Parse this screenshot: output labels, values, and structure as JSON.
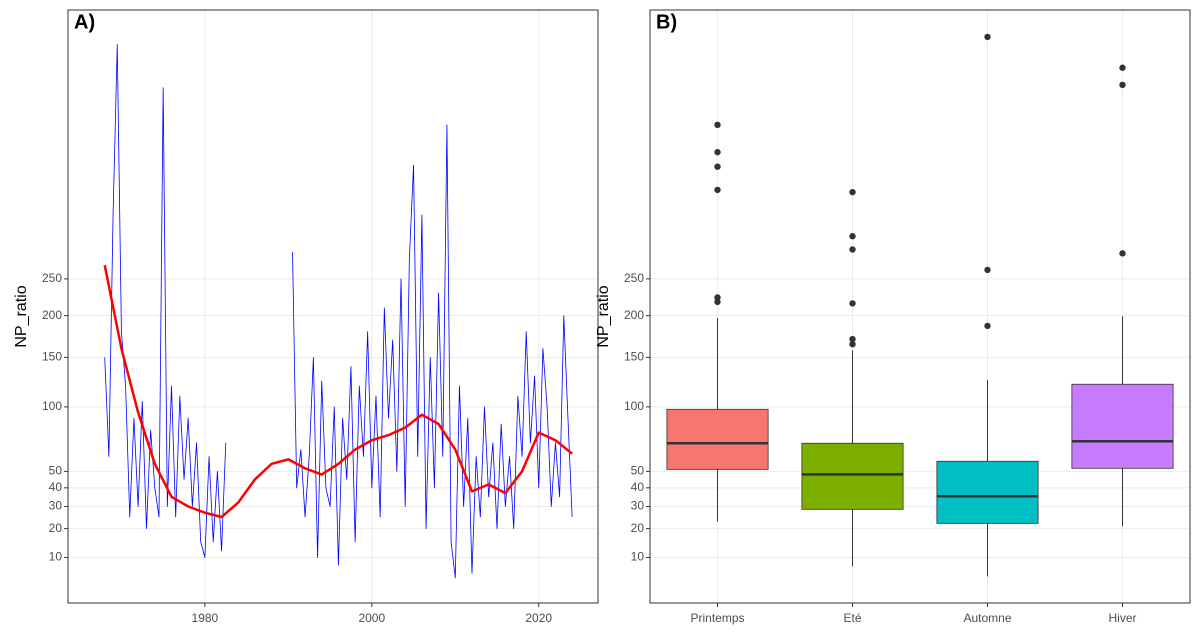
{
  "chart_data": [
    {
      "type": "line",
      "panel_label": "A)",
      "y_label": "NP_ratio",
      "yscale": "sqrt",
      "grid": true,
      "xlim": [
        1963.6,
        2027.1
      ],
      "xticks": [
        1980,
        2000,
        2020
      ],
      "ylim": [
        1.2,
        785
      ],
      "yticks": [
        10,
        20,
        30,
        40,
        50,
        100,
        150,
        200,
        250
      ],
      "series": [
        {
          "color": "#0000FF",
          "line_width": 0.8,
          "x": [
            1968.0,
            1968.5,
            1969.0,
            1969.5,
            1970.0,
            1970.5,
            1971.0,
            1971.5,
            1972.0,
            1972.5,
            1973.0,
            1973.5,
            1974.0,
            1974.5,
            1975.0,
            1975.5,
            1976.0,
            1976.5,
            1977.0,
            1977.5,
            1978.0,
            1978.5,
            1979.0,
            1979.5,
            1980.0,
            1980.5,
            1981.0,
            1981.5,
            1982.0,
            1982.5,
            1986.5,
            1990.5,
            1991.0,
            1991.5,
            1992.0,
            1992.5,
            1993.0,
            1993.5,
            1994.0,
            1994.5,
            1995.0,
            1995.5,
            1996.0,
            1996.5,
            1997.0,
            1997.5,
            1998.0,
            1998.5,
            1999.0,
            1999.5,
            2000.0,
            2000.5,
            2001.0,
            2001.5,
            2002.0,
            2002.5,
            2003.0,
            2003.5,
            2004.0,
            2004.5,
            2005.0,
            2005.5,
            2006.0,
            2006.5,
            2007.0,
            2007.5,
            2008.0,
            2008.5,
            2009.0,
            2009.5,
            2010.0,
            2010.5,
            2011.0,
            2011.5,
            2012.0,
            2012.5,
            2013.0,
            2013.5,
            2014.0,
            2014.5,
            2015.0,
            2015.5,
            2016.0,
            2016.5,
            2017.0,
            2017.5,
            2018.0,
            2018.5,
            2019.0,
            2019.5,
            2020.0,
            2020.5,
            2021.0,
            2021.5,
            2022.0,
            2022.5,
            2023.0,
            2023.5,
            2024.0
          ],
          "values": [
            150,
            60,
            350,
            700,
            180,
            120,
            25,
            90,
            30,
            105,
            20,
            80,
            40,
            25,
            600,
            30,
            120,
            25,
            110,
            45,
            90,
            30,
            70,
            15,
            10,
            60,
            15,
            50,
            12,
            70,
            null,
            290,
            40,
            65,
            25,
            60,
            150,
            10,
            125,
            40,
            30,
            100,
            8,
            90,
            45,
            140,
            15,
            120,
            60,
            180,
            40,
            110,
            25,
            210,
            90,
            170,
            50,
            250,
            30,
            280,
            440,
            60,
            350,
            20,
            150,
            40,
            230,
            60,
            520,
            15,
            5,
            120,
            30,
            90,
            6,
            60,
            25,
            100,
            35,
            70,
            20,
            85,
            30,
            60,
            20,
            110,
            60,
            180,
            70,
            130,
            40,
            160,
            100,
            30,
            70,
            35,
            200,
            90,
            25
          ]
        },
        {
          "color": "#FF0000",
          "line_width": 2.5,
          "x": [
            1968,
            1970,
            1972,
            1974,
            1976,
            1978,
            1980,
            1982,
            1984,
            1986,
            1988,
            1990,
            1992,
            1994,
            1996,
            1998,
            2000,
            2002,
            2004,
            2006,
            2008,
            2010,
            2012,
            2014,
            2016,
            2018,
            2020,
            2022,
            2024
          ],
          "values": [
            270,
            160,
            95,
            55,
            35,
            30,
            27,
            25,
            32,
            45,
            55,
            58,
            52,
            48,
            55,
            65,
            72,
            76,
            82,
            93,
            85,
            65,
            38,
            42,
            37,
            50,
            78,
            72,
            62
          ]
        }
      ]
    },
    {
      "type": "box",
      "panel_label": "B)",
      "y_label": "NP_ratio",
      "yscale": "sqrt",
      "grid": true,
      "ylim": [
        1.2,
        785
      ],
      "yticks": [
        10,
        20,
        30,
        40,
        50,
        100,
        150,
        200,
        250
      ],
      "categories": [
        "Printemps",
        "Eté",
        "Automne",
        "Hiver"
      ],
      "colors": [
        "#F8766D",
        "#7CAE00",
        "#00BFC4",
        "#C77CFF"
      ],
      "boxes": [
        {
          "whisker_low": 23,
          "q1": 51.3,
          "median": 69.7,
          "q3": 97.8,
          "whisker_high": 197,
          "outliers": [
            218,
            224,
            394,
            437,
            465,
            520
          ]
        },
        {
          "whisker_low": 7.6,
          "q1": 28.6,
          "median": 48.1,
          "q3": 69.7,
          "whisker_high": 158,
          "outliers": [
            165,
            171,
            216,
            294,
            315,
            390
          ]
        },
        {
          "whisker_low": 5.3,
          "q1": 22.2,
          "median": 35.3,
          "q3": 56.7,
          "whisker_high": 126,
          "outliers": [
            187,
            263,
            718
          ]
        },
        {
          "whisker_low": 20.9,
          "q1": 52,
          "median": 71.2,
          "q3": 121.6,
          "whisker_high": 199,
          "outliers": [
            288,
            606,
            645
          ]
        }
      ]
    }
  ]
}
